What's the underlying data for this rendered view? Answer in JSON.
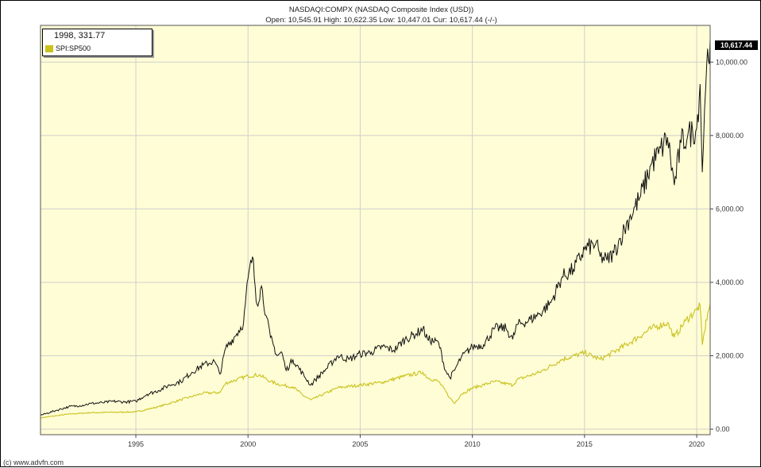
{
  "header": {
    "title": "NASDAQI:COMPX (NASDAQ Composite Index (USD))",
    "ohlc": "Open: 10,545.91 High: 10,622.35 Low: 10,447.01 Cur: 10,617.44 (-/-)"
  },
  "legend": {
    "readout": "1998, 331.77",
    "series_label": "SPI:SP500"
  },
  "current_badge": "10,617.44",
  "copyright": "(c) www.advfn.com",
  "colors": {
    "plot_background": "#fffdd5",
    "grid": "#cfcfcf",
    "nasdaq_line": "#111111",
    "sp500_line": "#c9c21e"
  },
  "chart_data": {
    "type": "line",
    "x_tick_labels": [
      "1995",
      "2000",
      "2005",
      "2010",
      "2015",
      "2020"
    ],
    "y_tick_labels": [
      "0.00",
      "2,000.00",
      "4,000.00",
      "6,000.00",
      "8,000.00",
      "10,000.00"
    ],
    "x_ticks": [
      1995,
      2000,
      2005,
      2010,
      2015,
      2020
    ],
    "y_ticks": [
      0,
      2000,
      4000,
      6000,
      8000,
      10000
    ],
    "xlim": [
      1990.75,
      2020.6
    ],
    "ylim": [
      -150,
      11000
    ],
    "grid": true,
    "legend_position": "top-left",
    "series": [
      {
        "id": "nasdaq",
        "x": [
          1990.75,
          1991.5,
          1992,
          1992.5,
          1993,
          1993.5,
          1994,
          1994.5,
          1995,
          1995.5,
          1996,
          1996.5,
          1997,
          1997.5,
          1998,
          1998.5,
          1998.75,
          1999,
          1999.5,
          1999.8,
          2000,
          2000.2,
          2000.4,
          2000.6,
          2000.8,
          2001,
          2001.3,
          2001.5,
          2001.7,
          2002,
          2002.5,
          2002.8,
          2003,
          2003.5,
          2004,
          2004.5,
          2005,
          2005.5,
          2006,
          2006.5,
          2007,
          2007.5,
          2007.8,
          2008,
          2008.5,
          2008.8,
          2009,
          2009.2,
          2009.5,
          2010,
          2010.5,
          2011,
          2011.5,
          2011.8,
          2012,
          2012.5,
          2013,
          2013.5,
          2014,
          2014.5,
          2015,
          2015.5,
          2015.7,
          2016,
          2016.3,
          2016.6,
          2017,
          2017.5,
          2018,
          2018.3,
          2018.7,
          2019,
          2019.3,
          2019.6,
          2020,
          2020.15,
          2020.25,
          2020.35,
          2020.45,
          2020.6
        ],
        "y": [
          380,
          520,
          610,
          640,
          700,
          720,
          760,
          740,
          760,
          950,
          1050,
          1200,
          1300,
          1550,
          1750,
          1850,
          1500,
          2200,
          2600,
          2900,
          4100,
          4700,
          3400,
          3900,
          3100,
          2500,
          2000,
          2100,
          1600,
          1900,
          1450,
          1200,
          1350,
          1650,
          2000,
          1900,
          2050,
          2100,
          2250,
          2150,
          2450,
          2600,
          2750,
          2450,
          2350,
          1600,
          1400,
          1600,
          1950,
          2250,
          2300,
          2750,
          2750,
          2450,
          2850,
          2950,
          3150,
          3450,
          4150,
          4350,
          4900,
          5050,
          4700,
          4600,
          4800,
          5200,
          5750,
          6350,
          7250,
          7500,
          7950,
          6650,
          7800,
          8000,
          8200,
          9400,
          7000,
          8700,
          10000,
          10620
        ]
      },
      {
        "id": "sp500",
        "name": "SPI:SP500",
        "x": [
          1990.75,
          1991.5,
          1992,
          1993,
          1994,
          1995,
          1996,
          1997,
          1998,
          1998.75,
          1999,
          1999.5,
          2000,
          2000.5,
          2001,
          2001.5,
          2002,
          2002.5,
          2002.8,
          2003,
          2004,
          2005,
          2006,
          2007,
          2007.8,
          2008,
          2008.5,
          2009,
          2009.2,
          2009.5,
          2010,
          2011,
          2011.8,
          2012,
          2013,
          2014,
          2015,
          2015.7,
          2016,
          2017,
          2018,
          2018.7,
          2019,
          2019.5,
          2020,
          2020.15,
          2020.25,
          2020.5,
          2020.6
        ],
        "y": [
          310,
          370,
          410,
          450,
          460,
          470,
          610,
          800,
          980,
          1000,
          1250,
          1350,
          1450,
          1480,
          1300,
          1200,
          1150,
          900,
          800,
          850,
          1130,
          1200,
          1280,
          1450,
          1550,
          1400,
          1300,
          850,
          700,
          950,
          1120,
          1300,
          1200,
          1350,
          1550,
          1900,
          2080,
          1900,
          2000,
          2350,
          2750,
          2900,
          2500,
          2950,
          3250,
          3380,
          2300,
          3200,
          3400
        ]
      }
    ]
  }
}
